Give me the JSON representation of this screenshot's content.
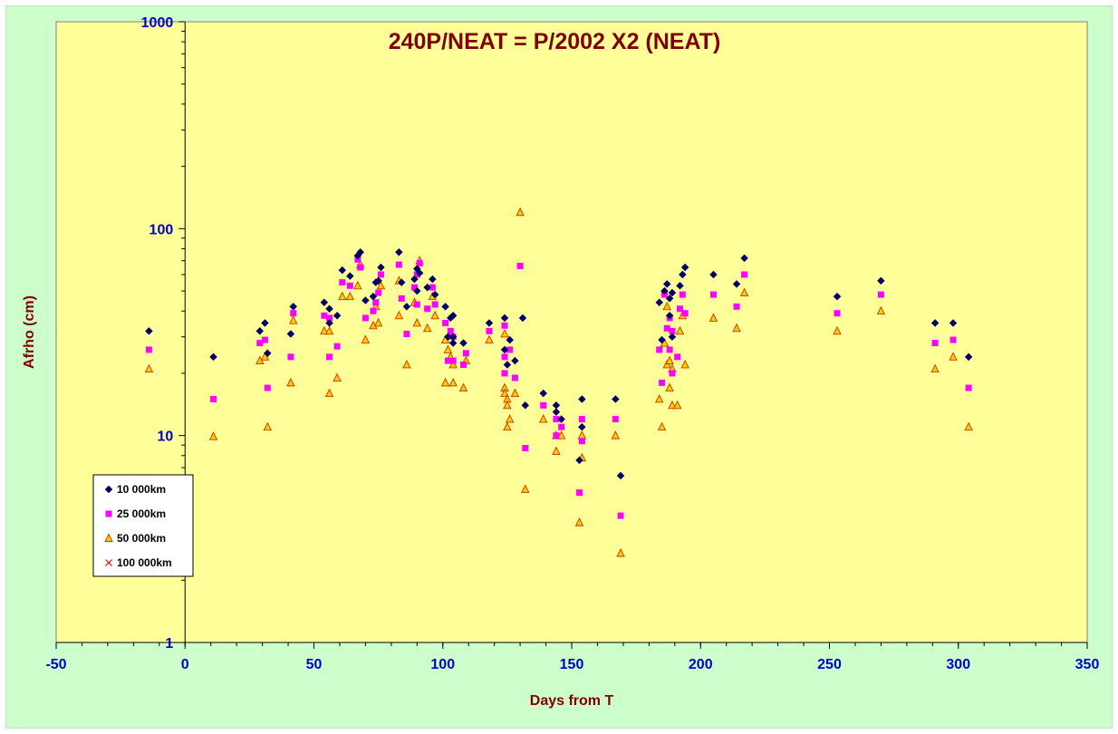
{
  "colors": {
    "background": "#ccffcc",
    "plot_area": "#ffff99",
    "axis_text": "#0000cc",
    "title_text": "#800000",
    "series_10k": "#000066",
    "series_25k": "#ff00ff",
    "series_50k_fill": "#ffcc00",
    "series_50k_edge": "#cc3300",
    "series_100k": "#ff0000"
  },
  "chart_data": {
    "type": "scatter",
    "title": "240P/NEAT = P/2002 X2 (NEAT)",
    "xlabel": "Days from T",
    "ylabel": "Afrho (cm)",
    "xlim": [
      -50,
      350
    ],
    "ylim": [
      1,
      1000
    ],
    "y_scale": "log",
    "grid": false,
    "legend_position": "bottom-left",
    "x_ticks": [
      "-50",
      "0",
      "50",
      "100",
      "150",
      "200",
      "250",
      "300",
      "350"
    ],
    "y_ticks": [
      "1",
      "10",
      "100",
      "1000"
    ],
    "series": [
      {
        "name": "10 000km",
        "marker": "diamond",
        "points": [
          [
            -14,
            32
          ],
          [
            11,
            24
          ],
          [
            29,
            32
          ],
          [
            31,
            35
          ],
          [
            32,
            25
          ],
          [
            41,
            31
          ],
          [
            42,
            42
          ],
          [
            54,
            44
          ],
          [
            56,
            41
          ],
          [
            56,
            35
          ],
          [
            59,
            38
          ],
          [
            61,
            63
          ],
          [
            64,
            59
          ],
          [
            67,
            74
          ],
          [
            68,
            77
          ],
          [
            70,
            45
          ],
          [
            73,
            47
          ],
          [
            74,
            55
          ],
          [
            75,
            56
          ],
          [
            76,
            65
          ],
          [
            83,
            77
          ],
          [
            84,
            55
          ],
          [
            86,
            42
          ],
          [
            89,
            57
          ],
          [
            90,
            64
          ],
          [
            90,
            50
          ],
          [
            91,
            61
          ],
          [
            94,
            52
          ],
          [
            96,
            57
          ],
          [
            97,
            48
          ],
          [
            101,
            42
          ],
          [
            102,
            30
          ],
          [
            103,
            37
          ],
          [
            104,
            38
          ],
          [
            104,
            30
          ],
          [
            104,
            28
          ],
          [
            108,
            28
          ],
          [
            118,
            35
          ],
          [
            124,
            37
          ],
          [
            124,
            26
          ],
          [
            125,
            22
          ],
          [
            126,
            29
          ],
          [
            128,
            23
          ],
          [
            131,
            37
          ],
          [
            132,
            14
          ],
          [
            139,
            16
          ],
          [
            144,
            14
          ],
          [
            144,
            13
          ],
          [
            146,
            12
          ],
          [
            153,
            7.6
          ],
          [
            154,
            15
          ],
          [
            154,
            11
          ],
          [
            167,
            15
          ],
          [
            169,
            6.4
          ],
          [
            184,
            44
          ],
          [
            185,
            29
          ],
          [
            186,
            50
          ],
          [
            187,
            54
          ],
          [
            188,
            46
          ],
          [
            188,
            38
          ],
          [
            189,
            49
          ],
          [
            189,
            30
          ],
          [
            192,
            53
          ],
          [
            193,
            60
          ],
          [
            194,
            65
          ],
          [
            205,
            60
          ],
          [
            214,
            54
          ],
          [
            217,
            72
          ],
          [
            253,
            47
          ],
          [
            270,
            56
          ],
          [
            291,
            35
          ],
          [
            298,
            35
          ],
          [
            304,
            24
          ]
        ]
      },
      {
        "name": "25 000km",
        "marker": "square",
        "points": [
          [
            -14,
            26
          ],
          [
            11,
            15
          ],
          [
            29,
            28
          ],
          [
            31,
            29
          ],
          [
            32,
            17
          ],
          [
            41,
            24
          ],
          [
            42,
            39
          ],
          [
            54,
            38
          ],
          [
            56,
            24
          ],
          [
            56,
            37
          ],
          [
            59,
            27
          ],
          [
            61,
            55
          ],
          [
            64,
            53
          ],
          [
            67,
            71
          ],
          [
            68,
            65
          ],
          [
            70,
            37
          ],
          [
            73,
            40
          ],
          [
            74,
            44
          ],
          [
            75,
            49
          ],
          [
            76,
            60
          ],
          [
            83,
            67
          ],
          [
            84,
            46
          ],
          [
            86,
            31
          ],
          [
            89,
            52
          ],
          [
            90,
            60
          ],
          [
            90,
            43
          ],
          [
            91,
            68
          ],
          [
            94,
            41
          ],
          [
            96,
            52
          ],
          [
            97,
            43
          ],
          [
            101,
            35
          ],
          [
            102,
            23
          ],
          [
            103,
            32
          ],
          [
            104,
            30
          ],
          [
            104,
            23
          ],
          [
            108,
            22
          ],
          [
            109,
            25
          ],
          [
            118,
            32
          ],
          [
            124,
            34
          ],
          [
            124,
            24
          ],
          [
            124,
            20
          ],
          [
            126,
            26
          ],
          [
            128,
            19
          ],
          [
            130,
            66
          ],
          [
            132,
            8.7
          ],
          [
            139,
            14
          ],
          [
            144,
            12
          ],
          [
            144,
            10
          ],
          [
            146,
            11
          ],
          [
            153,
            5.3
          ],
          [
            154,
            12
          ],
          [
            154,
            9.4
          ],
          [
            167,
            12
          ],
          [
            169,
            4.1
          ],
          [
            184,
            26
          ],
          [
            185,
            18
          ],
          [
            186,
            48
          ],
          [
            187,
            33
          ],
          [
            188,
            26
          ],
          [
            188,
            37
          ],
          [
            189,
            32
          ],
          [
            189,
            20
          ],
          [
            191,
            24
          ],
          [
            192,
            41
          ],
          [
            193,
            48
          ],
          [
            194,
            39
          ],
          [
            205,
            48
          ],
          [
            214,
            42
          ],
          [
            217,
            60
          ],
          [
            253,
            39
          ],
          [
            270,
            48
          ],
          [
            291,
            28
          ],
          [
            298,
            29
          ],
          [
            304,
            17
          ]
        ]
      },
      {
        "name": "50 000km",
        "marker": "triangle",
        "points": [
          [
            -14,
            21
          ],
          [
            11,
            9.9
          ],
          [
            29,
            23
          ],
          [
            31,
            24
          ],
          [
            32,
            11
          ],
          [
            41,
            18
          ],
          [
            42,
            36
          ],
          [
            54,
            32
          ],
          [
            56,
            16
          ],
          [
            56,
            32
          ],
          [
            59,
            19
          ],
          [
            61,
            47
          ],
          [
            64,
            47
          ],
          [
            67,
            53
          ],
          [
            68,
            67
          ],
          [
            70,
            29
          ],
          [
            73,
            34
          ],
          [
            74,
            42
          ],
          [
            75,
            35
          ],
          [
            76,
            53
          ],
          [
            83,
            56
          ],
          [
            83,
            38
          ],
          [
            86,
            22
          ],
          [
            89,
            44
          ],
          [
            90,
            35
          ],
          [
            91,
            70
          ],
          [
            94,
            33
          ],
          [
            96,
            47
          ],
          [
            97,
            38
          ],
          [
            101,
            29
          ],
          [
            101,
            18
          ],
          [
            102,
            26
          ],
          [
            103,
            24
          ],
          [
            104,
            18
          ],
          [
            104,
            22
          ],
          [
            108,
            17
          ],
          [
            109,
            23
          ],
          [
            118,
            29
          ],
          [
            124,
            31
          ],
          [
            124,
            17
          ],
          [
            124,
            16
          ],
          [
            125,
            15
          ],
          [
            125,
            14
          ],
          [
            125,
            11
          ],
          [
            126,
            12
          ],
          [
            128,
            16
          ],
          [
            130,
            120
          ],
          [
            132,
            5.5
          ],
          [
            139,
            12
          ],
          [
            144,
            8.4
          ],
          [
            144,
            10
          ],
          [
            146,
            10
          ],
          [
            153,
            3.8
          ],
          [
            154,
            10
          ],
          [
            154,
            7.8
          ],
          [
            167,
            10
          ],
          [
            169,
            2.7
          ],
          [
            184,
            15
          ],
          [
            185,
            11
          ],
          [
            186,
            28
          ],
          [
            187,
            42
          ],
          [
            187,
            22
          ],
          [
            188,
            23
          ],
          [
            188,
            17
          ],
          [
            189,
            21
          ],
          [
            189,
            14
          ],
          [
            191,
            14
          ],
          [
            192,
            32
          ],
          [
            193,
            38
          ],
          [
            194,
            22
          ],
          [
            205,
            37
          ],
          [
            214,
            33
          ],
          [
            217,
            49
          ],
          [
            253,
            32
          ],
          [
            270,
            40
          ],
          [
            291,
            21
          ],
          [
            298,
            24
          ],
          [
            304,
            11
          ]
        ]
      },
      {
        "name": "100 000km",
        "marker": "x",
        "points": []
      }
    ]
  }
}
